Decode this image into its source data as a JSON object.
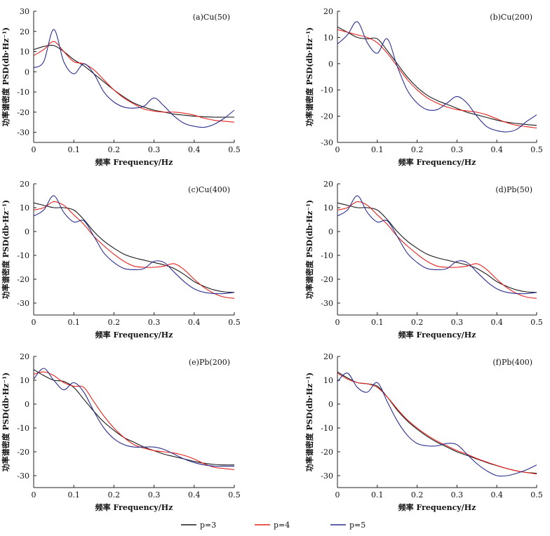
{
  "figure": {
    "line_colors": {
      "p=3": "#1a1a1a",
      "p=4": "#e8241f",
      "p=5": "#2b2f8f"
    }
  },
  "chart_data": [
    {
      "type": "line",
      "title": "(a)Cu(50)",
      "xlabel": "频率 Frequency/Hz",
      "ylabel": "功率谱密度 PSD(db·Hz⁻¹)",
      "xlim": [
        0,
        0.5
      ],
      "ylim": [
        -35,
        30
      ],
      "xticks": [
        "0",
        "0.1",
        "0.2",
        "0.3",
        "0.4",
        "0.5"
      ],
      "yticks": [
        "-30",
        "-20",
        "-10",
        "0",
        "10",
        "20",
        "30"
      ],
      "legend_position": "bottom",
      "x": [
        0,
        0.025,
        0.05,
        0.075,
        0.1,
        0.125,
        0.15,
        0.175,
        0.2,
        0.225,
        0.25,
        0.275,
        0.3,
        0.325,
        0.35,
        0.375,
        0.4,
        0.425,
        0.45,
        0.475,
        0.5
      ],
      "series": [
        {
          "name": "p=3",
          "values": [
            11,
            12.5,
            13,
            10,
            6,
            3,
            -1,
            -5,
            -9,
            -12.5,
            -15.5,
            -17.5,
            -19,
            -20,
            -21,
            -21.5,
            -22,
            -22.3,
            -22.5,
            -22.5,
            -22.5
          ]
        },
        {
          "name": "p=4",
          "values": [
            8,
            11,
            15,
            10,
            5,
            4,
            1,
            -4,
            -9,
            -13,
            -16,
            -18.5,
            -19.5,
            -20,
            -20,
            -20.5,
            -21.5,
            -23,
            -24,
            -24.5,
            -25
          ]
        },
        {
          "name": "p=5",
          "values": [
            2,
            5,
            21,
            5,
            -1,
            4,
            -1,
            -10,
            -15,
            -17.5,
            -18,
            -17,
            -13,
            -17,
            -22,
            -25.5,
            -27,
            -27.5,
            -26,
            -23,
            -19
          ]
        }
      ]
    },
    {
      "type": "line",
      "title": "(b)Cu(200)",
      "xlabel": "频率 Frequency/Hz",
      "ylabel": "功率谱密度 PSD(db·Hz⁻¹)",
      "xlim": [
        0,
        0.5
      ],
      "ylim": [
        -30,
        20
      ],
      "xticks": [
        "0",
        "0.1",
        "0.2",
        "0.3",
        "0.4",
        "0.5"
      ],
      "yticks": [
        "-30",
        "-20",
        "-10",
        "0",
        "10",
        "20"
      ],
      "legend_position": "bottom",
      "x": [
        0,
        0.025,
        0.05,
        0.075,
        0.1,
        0.125,
        0.15,
        0.175,
        0.2,
        0.225,
        0.25,
        0.275,
        0.3,
        0.325,
        0.35,
        0.375,
        0.4,
        0.425,
        0.45,
        0.475,
        0.5
      ],
      "series": [
        {
          "name": "p=3",
          "values": [
            14,
            12,
            10,
            9.5,
            9.5,
            5,
            0,
            -5,
            -9,
            -12,
            -14,
            -15.5,
            -17,
            -18.5,
            -19.5,
            -20.5,
            -21.5,
            -22.3,
            -22.8,
            -23.2,
            -23.5
          ]
        },
        {
          "name": "p=4",
          "values": [
            13,
            12,
            11,
            10,
            8,
            4,
            -1,
            -6,
            -10,
            -13,
            -15,
            -16.5,
            -17.5,
            -18,
            -18.5,
            -19.5,
            -21,
            -22.5,
            -23.5,
            -24,
            -24.5
          ]
        },
        {
          "name": "p=5",
          "values": [
            7.5,
            11,
            16,
            8,
            4,
            9.5,
            -1,
            -10,
            -15,
            -17.5,
            -17.5,
            -15,
            -12.5,
            -15,
            -20,
            -24,
            -25.5,
            -26,
            -25,
            -22,
            -19.5
          ]
        }
      ]
    },
    {
      "type": "line",
      "title": "(c)Cu(400)",
      "xlabel": "频率 Frequency/Hz",
      "ylabel": "功率谱密度 PSD(db·Hz⁻¹)",
      "xlim": [
        0,
        0.5
      ],
      "ylim": [
        -35,
        20
      ],
      "xticks": [
        "0",
        "0.1",
        "0.2",
        "0.3",
        "0.4",
        "0.5"
      ],
      "yticks": [
        "-30",
        "-20",
        "-10",
        "0",
        "10",
        "20"
      ],
      "legend_position": "bottom",
      "x": [
        0,
        0.025,
        0.05,
        0.075,
        0.1,
        0.125,
        0.15,
        0.175,
        0.2,
        0.225,
        0.25,
        0.275,
        0.3,
        0.325,
        0.35,
        0.375,
        0.4,
        0.425,
        0.45,
        0.475,
        0.5
      ],
      "series": [
        {
          "name": "p=3",
          "values": [
            12,
            11,
            10,
            10,
            9,
            5,
            0,
            -4,
            -7,
            -9.5,
            -11,
            -12,
            -13,
            -14,
            -15.5,
            -18,
            -21,
            -23,
            -24.5,
            -25.3,
            -25.5
          ]
        },
        {
          "name": "p=4",
          "values": [
            9,
            10,
            12.5,
            11,
            7,
            3,
            -2,
            -6,
            -9.5,
            -12.5,
            -14.5,
            -15,
            -15,
            -14.5,
            -13.5,
            -16,
            -20,
            -23.5,
            -26,
            -27.5,
            -28
          ]
        },
        {
          "name": "p=5",
          "values": [
            6.5,
            9,
            15,
            8,
            4,
            4.5,
            -2,
            -9,
            -13,
            -15.5,
            -16,
            -15.5,
            -12.5,
            -13,
            -17,
            -21,
            -24,
            -25.5,
            -26,
            -26,
            -25.5
          ]
        }
      ]
    },
    {
      "type": "line",
      "title": "(d)Pb(50)",
      "xlabel": "频率 Frequency/Hz",
      "ylabel": "功率谱密度 PSD(db·Hz⁻¹)",
      "xlim": [
        0,
        0.5
      ],
      "ylim": [
        -35,
        20
      ],
      "xticks": [
        "0",
        "0.1",
        "0.2",
        "0.3",
        "0.4",
        "0.5"
      ],
      "yticks": [
        "-30",
        "-20",
        "-10",
        "0",
        "10",
        "20"
      ],
      "legend_position": "bottom",
      "x": [
        0,
        0.025,
        0.05,
        0.075,
        0.1,
        0.125,
        0.15,
        0.175,
        0.2,
        0.225,
        0.25,
        0.275,
        0.3,
        0.325,
        0.35,
        0.375,
        0.4,
        0.425,
        0.45,
        0.475,
        0.5
      ],
      "series": [
        {
          "name": "p=3",
          "values": [
            12,
            11,
            10,
            10,
            9,
            5,
            0,
            -4,
            -7,
            -9.5,
            -11,
            -12,
            -13,
            -14,
            -15.5,
            -18,
            -21,
            -23,
            -24.5,
            -25.3,
            -25.5
          ]
        },
        {
          "name": "p=4",
          "values": [
            9,
            10,
            12.5,
            11,
            7,
            3,
            -2,
            -6,
            -9.5,
            -12.5,
            -14.5,
            -15,
            -15,
            -14.5,
            -13.5,
            -16,
            -20,
            -23.5,
            -26,
            -27.5,
            -28
          ]
        },
        {
          "name": "p=5",
          "values": [
            6.5,
            9,
            15,
            8,
            4,
            4.5,
            -2,
            -9,
            -13,
            -15.5,
            -16,
            -15.5,
            -12.5,
            -13,
            -17,
            -21,
            -24,
            -25.5,
            -26,
            -26,
            -25.5
          ]
        }
      ]
    },
    {
      "type": "line",
      "title": "(e)Pb(200)",
      "xlabel": "频率 Frequency/Hz",
      "ylabel": "功率谱密度 PSD(db·Hz⁻¹)",
      "xlim": [
        0,
        0.5
      ],
      "ylim": [
        -35,
        20
      ],
      "xticks": [
        "0",
        "0.1",
        "0.2",
        "0.3",
        "0.4",
        "0.5"
      ],
      "yticks": [
        "-30",
        "-20",
        "-10",
        "0",
        "10",
        "20"
      ],
      "legend_position": "bottom",
      "x": [
        0,
        0.025,
        0.05,
        0.075,
        0.1,
        0.125,
        0.15,
        0.175,
        0.2,
        0.225,
        0.25,
        0.275,
        0.3,
        0.325,
        0.35,
        0.375,
        0.4,
        0.425,
        0.45,
        0.475,
        0.5
      ],
      "series": [
        {
          "name": "p=3",
          "values": [
            14.5,
            12,
            10,
            9.5,
            7,
            2,
            -3,
            -7.5,
            -11,
            -14,
            -16,
            -18,
            -19.5,
            -21,
            -22,
            -23,
            -24,
            -24.8,
            -25.3,
            -25.5,
            -25.5
          ]
        },
        {
          "name": "p=4",
          "values": [
            12.5,
            13.5,
            12,
            9,
            7.5,
            7,
            1,
            -5,
            -10,
            -14,
            -17,
            -18.5,
            -19.5,
            -20,
            -20.5,
            -21.5,
            -23,
            -25,
            -26.5,
            -27,
            -27.5
          ]
        },
        {
          "name": "p=5",
          "values": [
            10.5,
            15,
            10,
            6,
            9,
            5,
            -3,
            -10,
            -14.5,
            -17,
            -18,
            -18,
            -18,
            -19,
            -21,
            -23,
            -24.5,
            -25.5,
            -26,
            -26,
            -26
          ]
        }
      ]
    },
    {
      "type": "line",
      "title": "(f)Pb(400)",
      "xlabel": "频率 Frequency/Hz",
      "ylabel": "功率谱密度 PSD(db·Hz⁻¹)",
      "xlim": [
        0,
        0.5
      ],
      "ylim": [
        -35,
        20
      ],
      "xticks": [
        "0",
        "0.1",
        "0.2",
        "0.3",
        "0.4",
        "0.5"
      ],
      "yticks": [
        "-30",
        "-20",
        "-10",
        "0",
        "10",
        "20"
      ],
      "legend_position": "bottom",
      "x": [
        0,
        0.025,
        0.05,
        0.075,
        0.1,
        0.125,
        0.15,
        0.175,
        0.2,
        0.225,
        0.25,
        0.275,
        0.3,
        0.325,
        0.35,
        0.375,
        0.4,
        0.425,
        0.45,
        0.475,
        0.5
      ],
      "series": [
        {
          "name": "p=3",
          "values": [
            13.5,
            11,
            9,
            8.5,
            7.5,
            3,
            -2.5,
            -7,
            -10.5,
            -13.5,
            -16,
            -18,
            -20,
            -21.5,
            -23,
            -24.5,
            -25.8,
            -27,
            -28,
            -28.7,
            -29
          ]
        },
        {
          "name": "p=4",
          "values": [
            13,
            10.5,
            9,
            8.5,
            7,
            3,
            -2,
            -6.5,
            -10,
            -13,
            -15.5,
            -17.5,
            -19.5,
            -21,
            -22.8,
            -24.3,
            -25.7,
            -27,
            -28,
            -28.7,
            -29.3
          ]
        },
        {
          "name": "p=5",
          "values": [
            9.5,
            13,
            7,
            5,
            9,
            1,
            -7,
            -13,
            -16.5,
            -17.5,
            -17.5,
            -16.5,
            -17,
            -21,
            -25,
            -28,
            -30,
            -30,
            -29,
            -27.5,
            -25.5
          ]
        }
      ]
    }
  ],
  "legend": [
    {
      "label": "p=3",
      "color": "#1a1a1a"
    },
    {
      "label": "p=4",
      "color": "#e8241f"
    },
    {
      "label": "p=5",
      "color": "#2b2f8f"
    }
  ]
}
